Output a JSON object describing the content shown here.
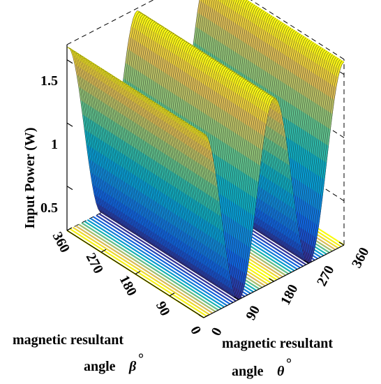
{
  "chart_data": {
    "type": "surface3d",
    "title": "",
    "zlabel": "Input Power (W)",
    "x_axis": {
      "label": "magnetic resultant",
      "label2": "angle",
      "symbol": "θ",
      "degree": "°",
      "ticks": [
        "0",
        "90",
        "180",
        "270",
        "360"
      ],
      "range": [
        0,
        360
      ]
    },
    "y_axis": {
      "label": "magnetic resultant",
      "label2": "angle",
      "symbol": "β",
      "degree": "°",
      "ticks": [
        "0",
        "90",
        "180",
        "270",
        "360"
      ],
      "range": [
        0,
        360
      ]
    },
    "z_axis": {
      "ticks": [
        "0.5",
        "1",
        "1.5"
      ],
      "tick_values": [
        0.5,
        1.0,
        1.5
      ],
      "range": [
        0.15,
        1.6
      ]
    },
    "surface": {
      "function": "P(θ) ≈ 0.875 + 0.725·cos(2θ), nearly constant along β",
      "max_power": 1.6,
      "min_power": 0.15,
      "peaks_at_theta": [
        0,
        180,
        360
      ],
      "valleys_at_theta": [
        90,
        270
      ]
    },
    "colormap": "parula",
    "grid": false,
    "contour_projection": true
  }
}
